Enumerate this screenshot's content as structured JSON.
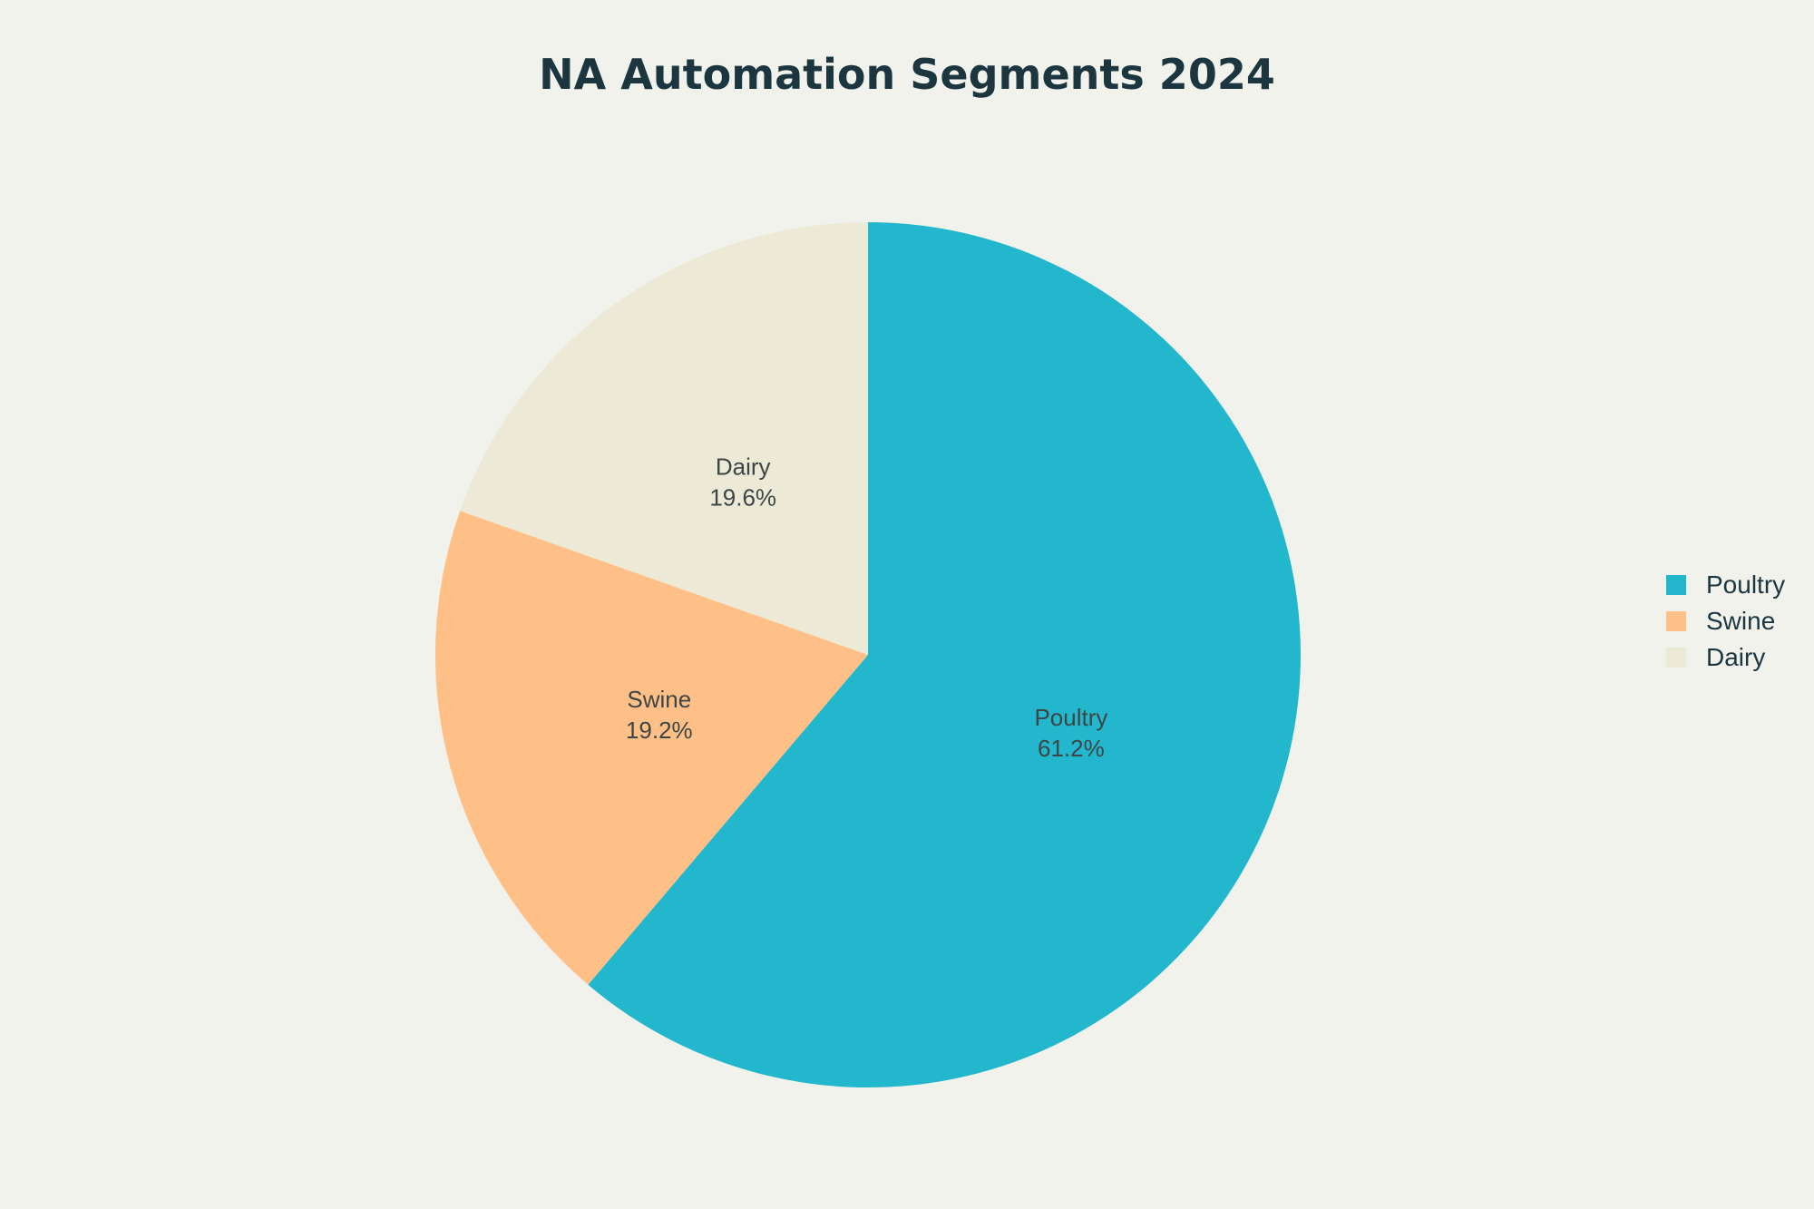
{
  "chart_data": {
    "type": "pie",
    "title": "NA Automation Segments 2024",
    "categories": [
      "Poultry",
      "Swine",
      "Dairy"
    ],
    "values": [
      61.2,
      19.2,
      19.6
    ],
    "value_labels": [
      "61.2%",
      "19.2%",
      "19.6%"
    ],
    "colors": [
      "#22b7cc",
      "#ffc087",
      "#ecead6"
    ],
    "legend_position": "right",
    "start_angle": "12 o'clock",
    "direction": "clockwise"
  }
}
